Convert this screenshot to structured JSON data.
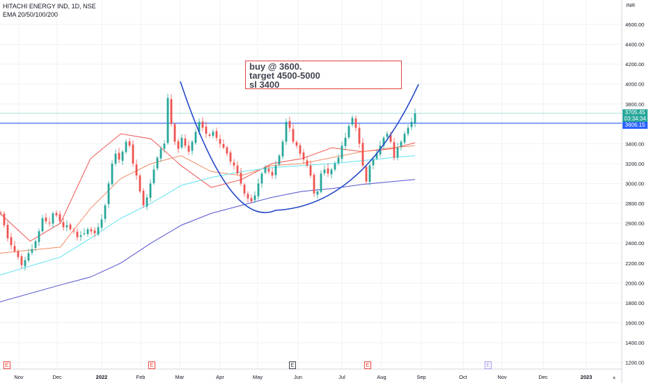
{
  "legend": {
    "symbol": "HITACHI ENERGY IND, 1D, NSE",
    "indicator": "EMA 20/50/100/200"
  },
  "note": {
    "line1": "buy @ 3600.",
    "line2": "target 4500-5000",
    "line3": "sl 3400"
  },
  "price_tags": {
    "last": "3705.45",
    "countdown": "03:34:34",
    "ref": "3606.15"
  },
  "events": [
    {
      "label": "E",
      "style": "earnings"
    },
    {
      "label": "E",
      "style": "earnings"
    },
    {
      "label": "E",
      "style": "earnings-dark"
    },
    {
      "label": "E",
      "style": "earnings"
    },
    {
      "label": "E",
      "style": "future"
    }
  ],
  "colors": {
    "up": "#26a69a",
    "down": "#ef5350",
    "ema20": "#ef5350",
    "ema50": "#f28b62",
    "ema100": "#5ee4f0",
    "ema200": "#5250d0",
    "trend": "#2448c8",
    "ref_line": "#2962ff",
    "grid": "#eef0f3"
  },
  "chart_data": {
    "type": "candlestick",
    "title": "HITACHI ENERGY IND, 1D, NSE",
    "currency": "INR",
    "ylim": [
      1200,
      4700
    ],
    "y_ticks": [
      1200,
      1400,
      1600,
      1800,
      2000,
      2200,
      2400,
      2600,
      2800,
      3000,
      3200,
      3400,
      3600,
      3800,
      4000,
      4200,
      4400,
      4600
    ],
    "x_ticks": [
      "Nov",
      "Dec",
      "2022",
      "Feb",
      "Mar",
      "Apr",
      "May",
      "Jun",
      "Jul",
      "Aug",
      "Sep",
      "Oct",
      "Nov",
      "Dec",
      "2023"
    ],
    "grid": true,
    "price_line_last": 3705.45,
    "horizontal_level": 3606.15,
    "candles_close": [
      2700,
      2580,
      2450,
      2380,
      2320,
      2260,
      2180,
      2230,
      2300,
      2340,
      2420,
      2520,
      2650,
      2620,
      2600,
      2700,
      2680,
      2620,
      2560,
      2580,
      2540,
      2520,
      2460,
      2480,
      2500,
      2540,
      2520,
      2500,
      2560,
      2640,
      2780,
      3000,
      3200,
      3300,
      3240,
      3320,
      3420,
      3380,
      3200,
      3080,
      2920,
      2780,
      2860,
      3000,
      3140,
      3260,
      3350,
      3400,
      3860,
      3600,
      3420,
      3350,
      3460,
      3380,
      3320,
      3420,
      3520,
      3620,
      3560,
      3500,
      3480,
      3520,
      3460,
      3400,
      3360,
      3300,
      3220,
      3180,
      3100,
      3000,
      2900,
      2850,
      2820,
      2880,
      3000,
      3100,
      3160,
      3120,
      3080,
      3180,
      3280,
      3420,
      3620,
      3560,
      3420,
      3380,
      3300,
      3240,
      3180,
      3080,
      2900,
      2920,
      3100,
      3140,
      3100,
      3140,
      3200,
      3260,
      3380,
      3460,
      3580,
      3660,
      3560,
      3400,
      3180,
      3020,
      3180,
      3240,
      3300,
      3380,
      3460,
      3500,
      3420,
      3260,
      3360,
      3420,
      3500,
      3560,
      3620,
      3705
    ],
    "ema": {
      "20": [
        [
          0,
          2700
        ],
        [
          20,
          2420
        ],
        [
          40,
          2600
        ],
        [
          60,
          3250
        ],
        [
          80,
          3500
        ],
        [
          100,
          3450
        ],
        [
          120,
          3180
        ],
        [
          140,
          2960
        ],
        [
          160,
          3040
        ],
        [
          180,
          3200
        ],
        [
          200,
          3250
        ],
        [
          220,
          3360
        ],
        [
          240,
          3320
        ],
        [
          260,
          3350
        ],
        [
          275,
          3410
        ]
      ],
      "50": [
        [
          0,
          2300
        ],
        [
          40,
          2360
        ],
        [
          60,
          2750
        ],
        [
          80,
          3050
        ],
        [
          100,
          3200
        ],
        [
          120,
          3280
        ],
        [
          140,
          3120
        ],
        [
          160,
          3080
        ],
        [
          180,
          3180
        ],
        [
          200,
          3200
        ],
        [
          220,
          3260
        ],
        [
          240,
          3320
        ],
        [
          260,
          3360
        ],
        [
          275,
          3380
        ]
      ],
      "100": [
        [
          0,
          2080
        ],
        [
          40,
          2260
        ],
        [
          60,
          2450
        ],
        [
          80,
          2650
        ],
        [
          100,
          2800
        ],
        [
          120,
          2980
        ],
        [
          140,
          3060
        ],
        [
          160,
          3120
        ],
        [
          180,
          3160
        ],
        [
          200,
          3180
        ],
        [
          220,
          3200
        ],
        [
          240,
          3230
        ],
        [
          260,
          3260
        ],
        [
          275,
          3280
        ]
      ],
      "200": [
        [
          0,
          1810
        ],
        [
          40,
          1980
        ],
        [
          60,
          2060
        ],
        [
          80,
          2200
        ],
        [
          100,
          2400
        ],
        [
          120,
          2580
        ],
        [
          140,
          2700
        ],
        [
          160,
          2780
        ],
        [
          180,
          2860
        ],
        [
          200,
          2920
        ],
        [
          220,
          2950
        ],
        [
          240,
          2990
        ],
        [
          260,
          3020
        ],
        [
          275,
          3040
        ]
      ]
    },
    "trendline_curve": [
      [
        4000,
        "Mar"
      ],
      [
        2740,
        "May"
      ],
      [
        4000,
        "Sep"
      ]
    ]
  }
}
